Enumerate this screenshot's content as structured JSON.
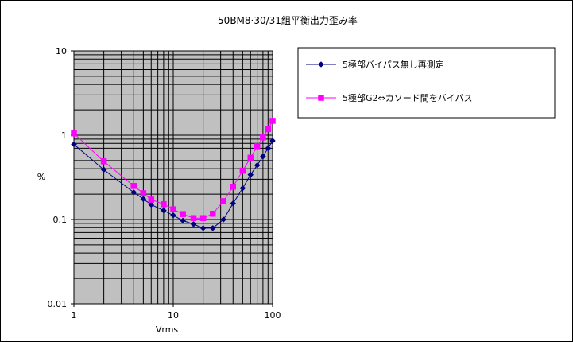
{
  "chart_data": {
    "type": "line",
    "title": "50BM8·30/31組平衡出力歪み率",
    "xlabel": "Vrms",
    "ylabel": "%",
    "x_scale": "log",
    "y_scale": "log",
    "xlim": [
      1,
      100
    ],
    "ylim": [
      0.01,
      10
    ],
    "x_ticks": [
      1,
      10,
      100
    ],
    "x_tick_labels": [
      "1",
      "10",
      "100"
    ],
    "y_ticks": [
      0.01,
      0.1,
      1,
      10
    ],
    "y_tick_labels": [
      "0.01",
      "0.1",
      "1",
      "10"
    ],
    "grid": true,
    "plot_background": "#c0c0c0",
    "legend_position": "right",
    "series": [
      {
        "name": "5極部バイパス無し再測定",
        "color": "#000080",
        "marker": "diamond",
        "x": [
          1,
          2,
          4,
          5,
          6,
          8,
          10,
          12.5,
          16,
          20,
          25,
          32,
          40,
          50,
          60,
          70,
          80,
          90,
          100
        ],
        "y": [
          0.78,
          0.39,
          0.21,
          0.175,
          0.15,
          0.128,
          0.112,
          0.097,
          0.088,
          0.079,
          0.079,
          0.1,
          0.155,
          0.235,
          0.34,
          0.44,
          0.56,
          0.7,
          0.86
        ]
      },
      {
        "name": "5極部G2⇔カソード間をバイパス",
        "color": "#ff00ff",
        "marker": "square",
        "x": [
          1,
          2,
          4,
          5,
          6,
          8,
          10,
          12.5,
          16,
          20,
          25,
          32,
          40,
          50,
          60,
          70,
          80,
          90,
          100
        ],
        "y": [
          1.05,
          0.49,
          0.25,
          0.205,
          0.172,
          0.152,
          0.132,
          0.116,
          0.104,
          0.104,
          0.117,
          0.165,
          0.245,
          0.38,
          0.54,
          0.74,
          0.94,
          1.18,
          1.48
        ]
      }
    ]
  }
}
